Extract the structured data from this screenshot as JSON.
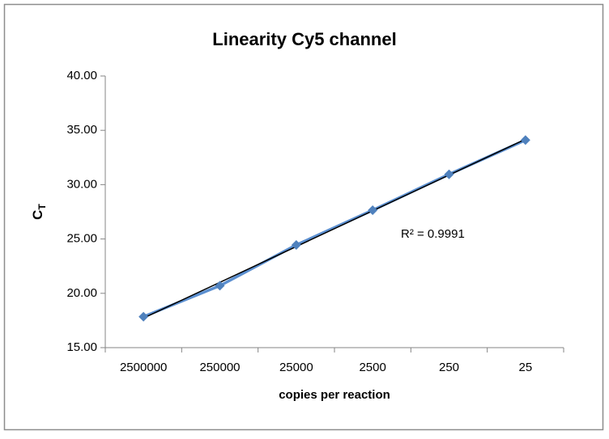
{
  "chart_data": {
    "type": "line",
    "title": "Linearity Cy5 channel",
    "xlabel": "copies per reaction",
    "ylabel": "C",
    "ylabel_subscript": "T",
    "annotation": "R² = 0.9991",
    "categories": [
      "2500000",
      "250000",
      "25000",
      "2500",
      "250",
      "25"
    ],
    "series": [
      {
        "name": "Cy5",
        "color": "#5b8fd0",
        "values": [
          17.85,
          20.7,
          24.45,
          27.65,
          30.95,
          34.1
        ]
      }
    ],
    "trendline": {
      "type": "linear",
      "color": "#000000"
    },
    "ylim": [
      15,
      40
    ],
    "yticks": [
      {
        "value": 15,
        "label": "15.00"
      },
      {
        "value": 20,
        "label": "20.00"
      },
      {
        "value": 25,
        "label": "25.00"
      },
      {
        "value": 30,
        "label": "30.00"
      },
      {
        "value": 35,
        "label": "35.00"
      },
      {
        "value": 40,
        "label": "40.00"
      }
    ],
    "grid": false,
    "legend": false
  }
}
